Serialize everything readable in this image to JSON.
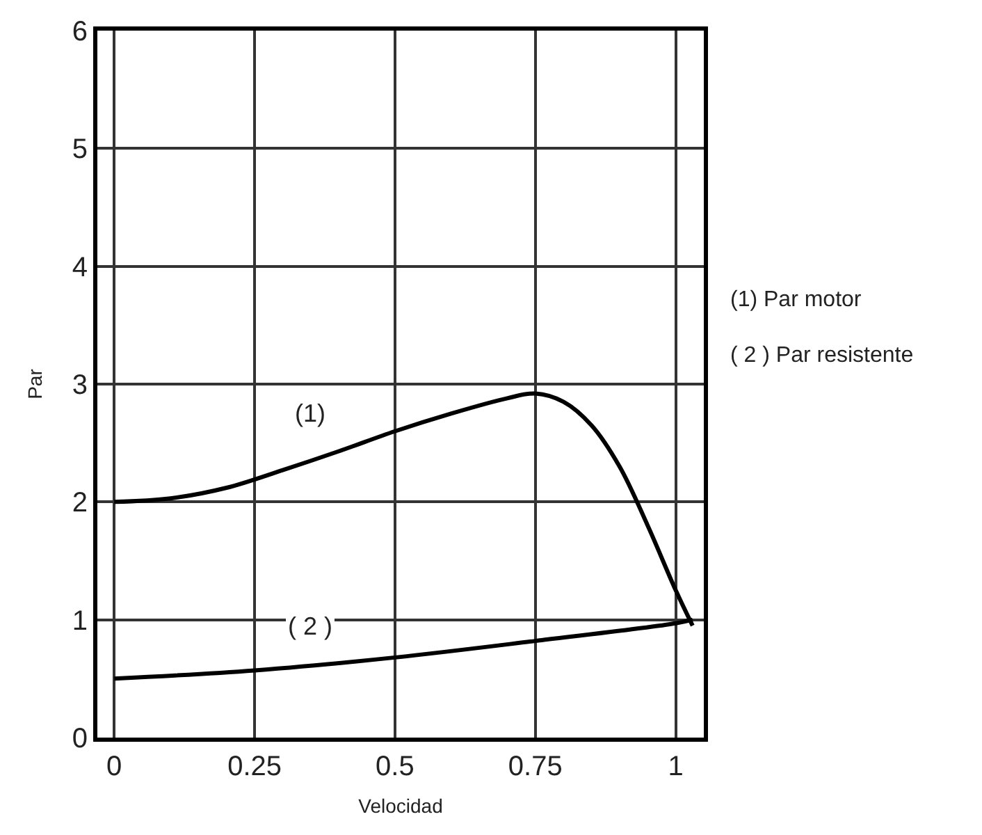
{
  "chart_data": {
    "type": "line",
    "xlabel": "Velocidad",
    "ylabel": "Par",
    "xlim": [
      -0.03,
      1.05
    ],
    "xticks": [
      0,
      0.25,
      0.5,
      0.75,
      1
    ],
    "ylim": [
      0,
      6
    ],
    "yticks": [
      0,
      1,
      2,
      3,
      4,
      5,
      6
    ],
    "grid": true,
    "marker": "none",
    "line_style": "solid",
    "series": [
      {
        "color": "#000000",
        "x": [
          0,
          0.1,
          0.2,
          0.3,
          0.4,
          0.5,
          0.6,
          0.7,
          0.75,
          0.8,
          0.85,
          0.9,
          0.95,
          1.0,
          1.03
        ],
        "values": [
          2.0,
          2.03,
          2.12,
          2.27,
          2.43,
          2.6,
          2.75,
          2.88,
          2.92,
          2.85,
          2.65,
          2.3,
          1.8,
          1.25,
          0.95
        ]
      },
      {
        "color": "#000000",
        "x": [
          0,
          0.25,
          0.5,
          0.75,
          1.0,
          1.03
        ],
        "values": [
          0.5,
          0.57,
          0.68,
          0.82,
          0.97,
          1.0
        ]
      }
    ],
    "annotations": [
      {
        "text": "(1)",
        "x": 0.35,
        "y": 2.75
      },
      {
        "text": "( 2 )",
        "x": 0.35,
        "y": 0.95
      },
      "(1) Par motor",
      "( 2 ) Par resistente"
    ]
  }
}
